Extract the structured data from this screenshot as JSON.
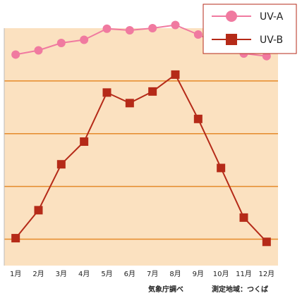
{
  "chart_data": {
    "type": "line",
    "categories": [
      "1月",
      "2月",
      "3月",
      "4月",
      "5月",
      "6月",
      "7月",
      "8月",
      "9月",
      "10月",
      "11月",
      "12月"
    ],
    "series": [
      {
        "name": "UV-A",
        "values": [
          3.5,
          3.58,
          3.72,
          3.78,
          3.99,
          3.96,
          4.0,
          4.06,
          3.88,
          3.68,
          3.52,
          3.47
        ],
        "color": "#f07aa0",
        "marker": "circle"
      },
      {
        "name": "UV-B",
        "values": [
          0.02,
          0.55,
          1.42,
          1.85,
          2.78,
          2.58,
          2.8,
          3.12,
          2.28,
          1.35,
          0.41,
          -0.05
        ],
        "color": "#b52a18",
        "marker": "square"
      }
    ],
    "title": "",
    "xlabel": "",
    "ylabel": "",
    "ylim": [
      -0.5,
      4.0
    ],
    "y_gridlines": [
      0,
      1,
      2,
      3
    ],
    "y_tick_labels_shown": false,
    "grid": true,
    "legend_position": "top-right",
    "plot_background": "#fbe1c0",
    "gridline_color": "#e58a2a"
  },
  "notes": {
    "source": "気象庁調べ",
    "region": "測定地域：つくば"
  }
}
